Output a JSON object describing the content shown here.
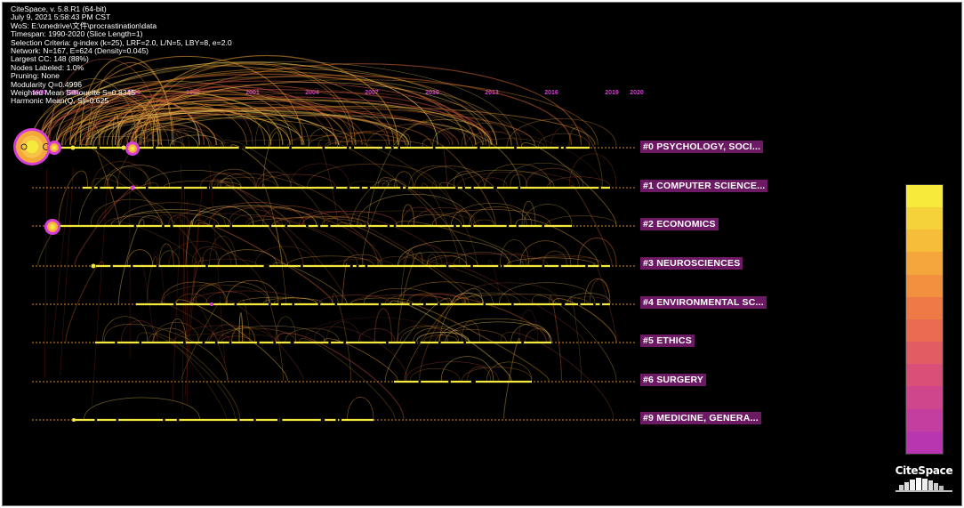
{
  "info": {
    "lines": [
      "CiteSpace, v. 5.8.R1 (64-bit)",
      "July 9, 2021 5:58:43 PM CST",
      "WoS: E:\\onedrive\\文件\\procrastination\\data",
      "Timespan: 1990-2020 (Slice Length=1)",
      "Selection Criteria: g-index (k=25), LRF=2.0, L/N=5, LBY=8, e=2.0",
      "Network: N=167, E=624 (Density=0.045)",
      "Largest CC: 148 (88%)",
      "Nodes Labeled: 1.0%",
      "Pruning: None",
      "Modularity Q=0.4996",
      "Weighted Mean Silhouette S=0.8345",
      "Harmonic Mean(Q, S)=0.625"
    ]
  },
  "timeline": {
    "years": [
      "1990",
      "1992",
      "1996",
      "1998",
      "2001",
      "2004",
      "2007",
      "2010",
      "2013",
      "2016",
      "2019",
      "2020"
    ],
    "year_color": "#d63fd6"
  },
  "clusters": [
    {
      "label": "#0 PSYCHOLOGY, SOCI..."
    },
    {
      "label": "#1 COMPUTER SCIENCE..."
    },
    {
      "label": "#2 ECONOMICS"
    },
    {
      "label": "#3 NEUROSCIENCES"
    },
    {
      "label": "#4 ENVIRONMENTAL SC..."
    },
    {
      "label": "#5 ETHICS"
    },
    {
      "label": "#6 SURGERY"
    },
    {
      "label": "#9 MEDICINE, GENERA..."
    }
  ],
  "legend": {
    "colors": [
      "#f7ea3a",
      "#f6d23a",
      "#f5bd3a",
      "#f4a63c",
      "#f29040",
      "#ef7a47",
      "#ea6a52",
      "#e25c63",
      "#d94f78",
      "#d0468d",
      "#c43ea0",
      "#b836b0"
    ]
  },
  "logo": {
    "text": "CiteSpace",
    "icon": "books-icon"
  },
  "colors": {
    "background": "#000000",
    "node": "#f4e93c",
    "halo": "#d63fd6",
    "label_bg": "#6b1a63",
    "edge_warm": "#e09a30"
  }
}
